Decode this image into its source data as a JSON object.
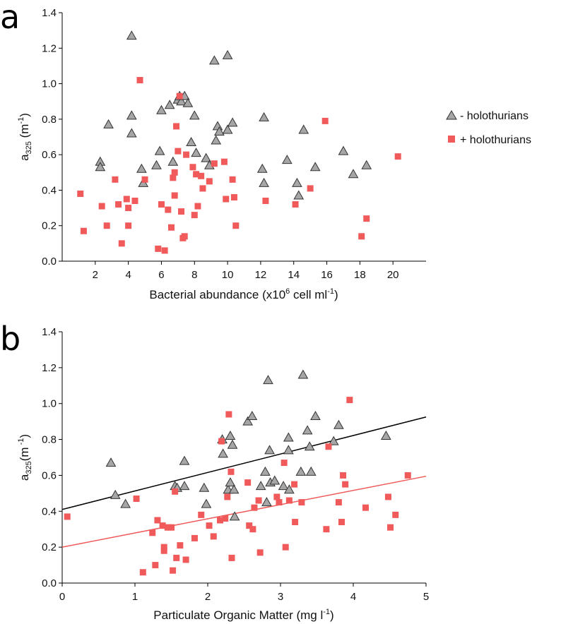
{
  "legend": {
    "minus_label": "- holothurians",
    "plus_label": "+ holothurians"
  },
  "colors": {
    "minus_fill": "#a6a6a6",
    "minus_stroke": "#333333",
    "plus_fill": "#f05a5a",
    "plus_line": "#f05a5a",
    "minus_line": "#000000"
  },
  "chart_data": [
    {
      "type": "scatter",
      "panel": "a",
      "xlabel": {
        "main": "Bacterial abundance (x10",
        "sup1": "6",
        "mid": " cell ml",
        "sup2": "-1",
        "end": ")"
      },
      "ylabel": {
        "main": "a",
        "sub": "325",
        "rest": " (m",
        "sup": "-1",
        "end": ")"
      },
      "xlim": [
        0,
        22
      ],
      "ylim": [
        0,
        1.4
      ],
      "xticks": [
        2,
        4,
        6,
        8,
        10,
        12,
        14,
        16,
        18,
        20
      ],
      "yticks": [
        "0.0",
        "0.2",
        "0.4",
        "0.6",
        "0.8",
        "1.0",
        "1.2",
        "1.4"
      ],
      "legend_position": "right",
      "series": [
        {
          "name": "- holothurians",
          "marker": "triangle",
          "points": [
            [
              2.3,
              0.56
            ],
            [
              2.3,
              0.53
            ],
            [
              2.8,
              0.77
            ],
            [
              4.2,
              1.27
            ],
            [
              4.2,
              0.82
            ],
            [
              4.2,
              0.72
            ],
            [
              4.8,
              0.52
            ],
            [
              4.9,
              0.44
            ],
            [
              5.7,
              0.54
            ],
            [
              5.9,
              0.62
            ],
            [
              6.0,
              0.85
            ],
            [
              6.5,
              0.88
            ],
            [
              6.7,
              0.56
            ],
            [
              7.0,
              0.91
            ],
            [
              7.1,
              0.93
            ],
            [
              7.2,
              0.9
            ],
            [
              7.4,
              0.93
            ],
            [
              7.6,
              0.89
            ],
            [
              7.8,
              0.67
            ],
            [
              8.0,
              0.82
            ],
            [
              8.1,
              0.61
            ],
            [
              8.7,
              0.58
            ],
            [
              8.9,
              0.54
            ],
            [
              9.2,
              1.13
            ],
            [
              9.3,
              0.68
            ],
            [
              9.4,
              0.76
            ],
            [
              9.5,
              0.73
            ],
            [
              10.0,
              1.16
            ],
            [
              10.0,
              0.74
            ],
            [
              10.3,
              0.78
            ],
            [
              12.1,
              0.52
            ],
            [
              12.2,
              0.44
            ],
            [
              12.2,
              0.81
            ],
            [
              13.6,
              0.57
            ],
            [
              14.2,
              0.44
            ],
            [
              14.3,
              0.37
            ],
            [
              14.6,
              0.74
            ],
            [
              15.3,
              0.53
            ],
            [
              17.0,
              0.62
            ],
            [
              17.6,
              0.49
            ],
            [
              18.4,
              0.54
            ]
          ]
        },
        {
          "name": "+ holothurians",
          "marker": "square",
          "points": [
            [
              1.1,
              0.38
            ],
            [
              1.3,
              0.17
            ],
            [
              2.4,
              0.31
            ],
            [
              2.7,
              0.2
            ],
            [
              3.2,
              0.46
            ],
            [
              3.4,
              0.32
            ],
            [
              3.6,
              0.1
            ],
            [
              3.9,
              0.35
            ],
            [
              4.0,
              0.3
            ],
            [
              4.0,
              0.2
            ],
            [
              4.4,
              0.34
            ],
            [
              4.7,
              1.02
            ],
            [
              5.0,
              0.46
            ],
            [
              5.8,
              0.07
            ],
            [
              6.0,
              0.32
            ],
            [
              6.2,
              0.06
            ],
            [
              6.4,
              0.29
            ],
            [
              6.6,
              0.19
            ],
            [
              6.7,
              0.47
            ],
            [
              6.8,
              0.5
            ],
            [
              6.8,
              0.37
            ],
            [
              6.9,
              0.76
            ],
            [
              7.0,
              0.62
            ],
            [
              7.1,
              0.93
            ],
            [
              7.2,
              0.28
            ],
            [
              7.3,
              0.13
            ],
            [
              7.4,
              0.14
            ],
            [
              7.5,
              0.6
            ],
            [
              7.9,
              0.53
            ],
            [
              8.0,
              0.26
            ],
            [
              8.1,
              0.49
            ],
            [
              8.2,
              0.31
            ],
            [
              8.4,
              0.48
            ],
            [
              8.5,
              0.41
            ],
            [
              8.9,
              0.45
            ],
            [
              9.2,
              0.55
            ],
            [
              9.8,
              0.56
            ],
            [
              9.9,
              0.35
            ],
            [
              10.3,
              0.46
            ],
            [
              10.4,
              0.36
            ],
            [
              10.5,
              0.2
            ],
            [
              12.3,
              0.34
            ],
            [
              14.1,
              0.32
            ],
            [
              15.0,
              0.41
            ],
            [
              15.9,
              0.79
            ],
            [
              18.1,
              0.14
            ],
            [
              18.4,
              0.24
            ],
            [
              20.3,
              0.59
            ]
          ]
        }
      ]
    },
    {
      "type": "scatter",
      "panel": "b",
      "xlabel": {
        "main": "Particulate Organic Matter (mg l",
        "sup": "-1",
        "end": ")"
      },
      "ylabel": {
        "main": "a",
        "sub": "325",
        "rest": "(m",
        "sup": " -1",
        "end": ")"
      },
      "xlim": [
        0,
        5
      ],
      "ylim": [
        0,
        1.4
      ],
      "xticks": [
        0,
        1,
        2,
        3,
        4,
        5
      ],
      "yticks": [
        "0.0",
        "0.2",
        "0.4",
        "0.6",
        "0.8",
        "1.0",
        "1.2",
        "1.4"
      ],
      "series": [
        {
          "name": "- holothurians",
          "marker": "triangle",
          "fit": [
            0.41,
            0.103
          ],
          "points": [
            [
              0.67,
              0.67
            ],
            [
              0.73,
              0.49
            ],
            [
              0.87,
              0.44
            ],
            [
              1.55,
              0.54
            ],
            [
              1.58,
              0.53
            ],
            [
              1.68,
              0.68
            ],
            [
              1.68,
              0.54
            ],
            [
              1.95,
              0.53
            ],
            [
              1.98,
              0.44
            ],
            [
              2.2,
              0.8
            ],
            [
              2.21,
              0.72
            ],
            [
              2.28,
              0.52
            ],
            [
              2.31,
              0.82
            ],
            [
              2.31,
              0.56
            ],
            [
              2.34,
              0.77
            ],
            [
              2.36,
              0.52
            ],
            [
              2.37,
              0.37
            ],
            [
              2.55,
              0.9
            ],
            [
              2.61,
              0.93
            ],
            [
              2.73,
              0.54
            ],
            [
              2.79,
              0.62
            ],
            [
              2.81,
              0.45
            ],
            [
              2.83,
              1.13
            ],
            [
              2.85,
              0.74
            ],
            [
              2.86,
              0.56
            ],
            [
              2.92,
              0.57
            ],
            [
              3.04,
              0.54
            ],
            [
              3.11,
              0.81
            ],
            [
              3.11,
              0.74
            ],
            [
              3.12,
              0.52
            ],
            [
              3.28,
              0.62
            ],
            [
              3.31,
              1.16
            ],
            [
              3.37,
              0.85
            ],
            [
              3.4,
              0.76
            ],
            [
              3.42,
              0.62
            ],
            [
              3.48,
              0.93
            ],
            [
              3.73,
              0.79
            ],
            [
              3.8,
              0.88
            ],
            [
              4.45,
              0.82
            ]
          ]
        },
        {
          "name": "+ holothurians",
          "marker": "square",
          "fit": [
            0.2,
            0.079
          ],
          "points": [
            [
              0.07,
              0.37
            ],
            [
              1.02,
              0.47
            ],
            [
              1.11,
              0.06
            ],
            [
              1.24,
              0.28
            ],
            [
              1.28,
              0.1
            ],
            [
              1.31,
              0.35
            ],
            [
              1.38,
              0.32
            ],
            [
              1.4,
              0.2
            ],
            [
              1.4,
              0.18
            ],
            [
              1.45,
              0.31
            ],
            [
              1.5,
              0.31
            ],
            [
              1.52,
              0.07
            ],
            [
              1.55,
              0.51
            ],
            [
              1.57,
              0.14
            ],
            [
              1.62,
              0.21
            ],
            [
              1.7,
              0.13
            ],
            [
              1.82,
              0.25
            ],
            [
              1.91,
              0.38
            ],
            [
              2.02,
              0.32
            ],
            [
              2.08,
              0.26
            ],
            [
              2.17,
              0.35
            ],
            [
              2.19,
              0.79
            ],
            [
              2.24,
              0.36
            ],
            [
              2.27,
              0.48
            ],
            [
              2.29,
              0.94
            ],
            [
              2.32,
              0.62
            ],
            [
              2.33,
              0.14
            ],
            [
              2.55,
              0.56
            ],
            [
              2.57,
              0.32
            ],
            [
              2.62,
              0.3
            ],
            [
              2.64,
              0.42
            ],
            [
              2.7,
              0.46
            ],
            [
              2.72,
              0.17
            ],
            [
              2.95,
              0.48
            ],
            [
              2.98,
              0.45
            ],
            [
              3.05,
              0.67
            ],
            [
              3.07,
              0.2
            ],
            [
              3.12,
              0.46
            ],
            [
              3.19,
              0.55
            ],
            [
              3.2,
              0.34
            ],
            [
              3.29,
              0.45
            ],
            [
              3.63,
              0.3
            ],
            [
              3.66,
              0.76
            ],
            [
              3.8,
              0.45
            ],
            [
              3.84,
              0.34
            ],
            [
              3.86,
              0.6
            ],
            [
              3.89,
              0.55
            ],
            [
              3.95,
              1.02
            ],
            [
              4.17,
              0.42
            ],
            [
              4.48,
              0.48
            ],
            [
              4.51,
              0.31
            ],
            [
              4.58,
              0.38
            ],
            [
              4.75,
              0.6
            ]
          ]
        }
      ]
    }
  ]
}
